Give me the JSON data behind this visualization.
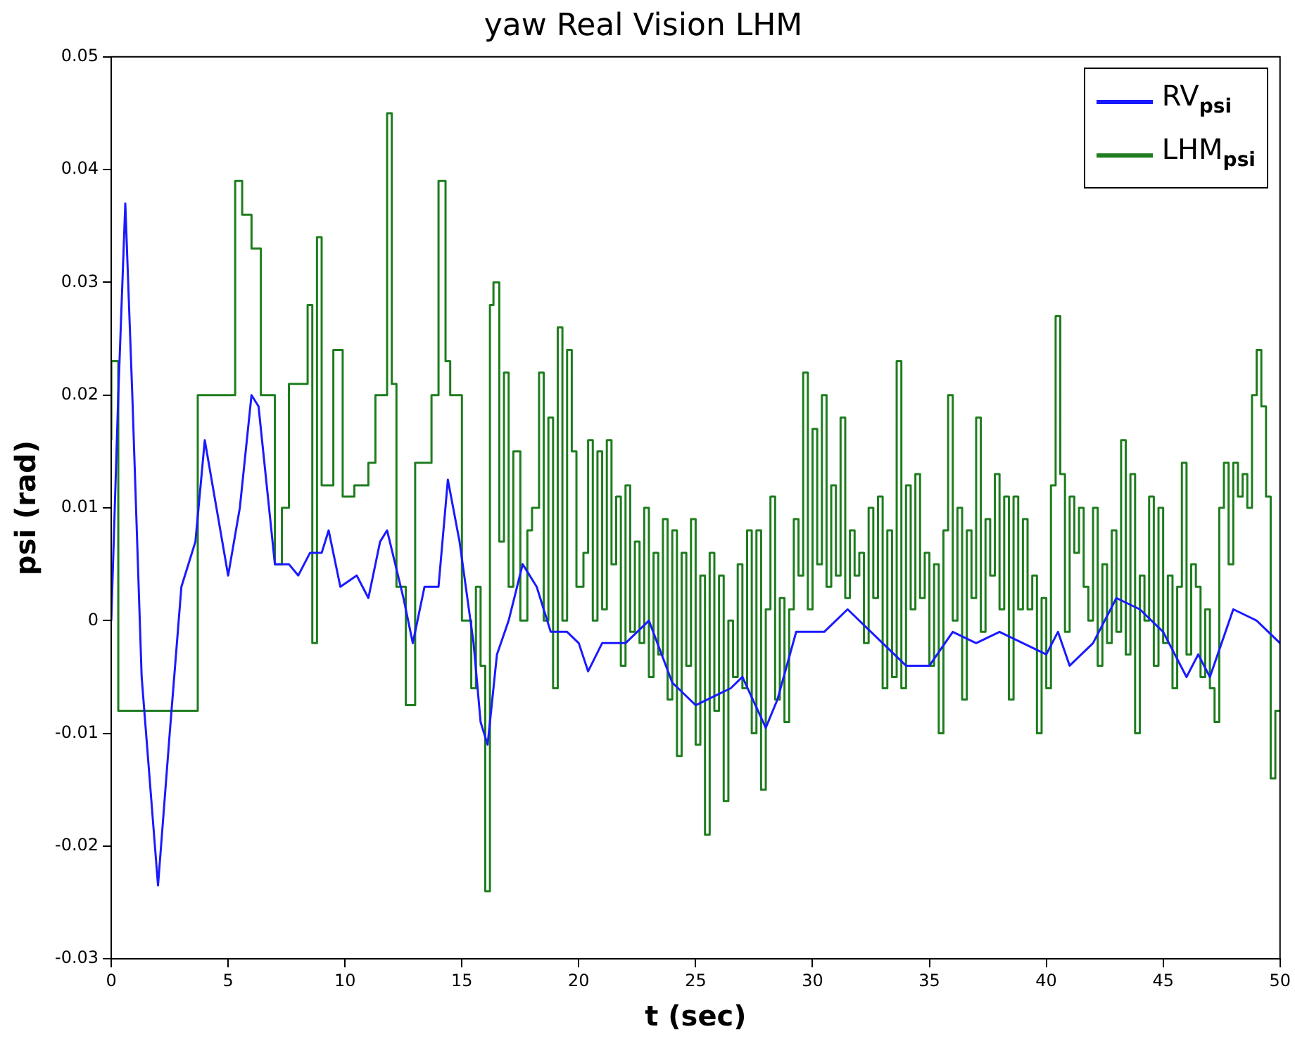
{
  "chart_data": {
    "type": "line",
    "title": "yaw Real Vision LHM",
    "xlabel": "t (sec)",
    "ylabel": "psi (rad)",
    "xlim": [
      0,
      50
    ],
    "xticks": [
      0,
      5,
      10,
      15,
      20,
      25,
      30,
      35,
      40,
      45,
      50
    ],
    "ylim": [
      -0.03,
      0.05
    ],
    "yticks": [
      -0.03,
      -0.02,
      -0.01,
      0,
      0.01,
      0.02,
      0.03,
      0.04,
      0.05
    ],
    "grid": false,
    "legend": "top right",
    "marker": "none",
    "line_style": "solid",
    "series": [
      {
        "name": "RV$_{psi}$",
        "color": "#1a1aff",
        "x": [
          0,
          0.3,
          0.6,
          0.9,
          1.3,
          2.0,
          2.5,
          3.0,
          3.6,
          4.0,
          4.5,
          5.0,
          5.5,
          6.0,
          6.3,
          7.0,
          7.6,
          8.0,
          8.5,
          9.0,
          9.3,
          9.8,
          10.5,
          11,
          11.5,
          11.8,
          12.5,
          12.9,
          13.4,
          14,
          14.4,
          14.9,
          15.5,
          15.8,
          16.1,
          16.5,
          17.0,
          17.6,
          18.2,
          18.8,
          19.5,
          20.0,
          20.4,
          21,
          22,
          23,
          24,
          25,
          26.5,
          27,
          28,
          28.5,
          29.3,
          30.5,
          31.5,
          32.5,
          34,
          35,
          36,
          37,
          38,
          39,
          40,
          40.5,
          41,
          42,
          43,
          44,
          45,
          46,
          46.5,
          47,
          48,
          49,
          50
        ],
        "values": [
          0,
          0.02,
          0.037,
          0.02,
          -0.005,
          -0.0235,
          -0.01,
          0.003,
          0.007,
          0.016,
          0.01,
          0.004,
          0.01,
          0.02,
          0.019,
          0.005,
          0.005,
          0.004,
          0.006,
          0.006,
          0.008,
          0.003,
          0.004,
          0.002,
          0.007,
          0.008,
          0.002,
          -0.002,
          0.003,
          0.003,
          0.0125,
          0.007,
          -0.002,
          -0.009,
          -0.011,
          -0.003,
          0,
          0.005,
          0.003,
          -0.001,
          -0.001,
          -0.002,
          -0.0045,
          -0.002,
          -0.002,
          0,
          -0.0055,
          -0.0075,
          -0.006,
          -0.005,
          -0.0095,
          -0.007,
          -0.001,
          -0.001,
          0.001,
          -0.001,
          -0.004,
          -0.004,
          -0.001,
          -0.002,
          -0.001,
          -0.002,
          -0.003,
          -0.001,
          -0.004,
          -0.002,
          0.002,
          0.001,
          -0.001,
          -0.005,
          -0.003,
          -0.005,
          0.001,
          0,
          -0.002
        ]
      },
      {
        "name": "LHM$_{psi}$",
        "color": "#1e7d1e",
        "type": "step",
        "x": [
          0,
          0.3,
          3.7,
          5.3,
          5.6,
          6.0,
          6.4,
          7.0,
          7.3,
          7.6,
          8.4,
          8.6,
          8.8,
          9.0,
          9.5,
          9.9,
          10.4,
          11.0,
          11.3,
          11.8,
          12.0,
          12.2,
          12.6,
          13.0,
          13.7,
          14.0,
          14.3,
          14.5,
          15.0,
          15.4,
          15.6,
          15.8,
          16.0,
          16.2,
          16.35,
          16.6,
          16.8,
          17.0,
          17.2,
          17.5,
          17.8,
          18.0,
          18.3,
          18.5,
          18.7,
          18.9,
          19.1,
          19.3,
          19.5,
          19.7,
          19.9,
          20.2,
          20.4,
          20.6,
          20.8,
          21.0,
          21.2,
          21.4,
          21.6,
          21.8,
          22.0,
          22.2,
          22.4,
          22.6,
          22.8,
          23.0,
          23.2,
          23.4,
          23.6,
          23.8,
          24.0,
          24.2,
          24.4,
          24.6,
          24.8,
          25.0,
          25.2,
          25.4,
          25.6,
          25.8,
          26.0,
          26.2,
          26.4,
          26.6,
          26.8,
          27.0,
          27.2,
          27.4,
          27.6,
          27.8,
          28.0,
          28.2,
          28.4,
          28.6,
          28.8,
          29.0,
          29.2,
          29.4,
          29.6,
          29.8,
          30.0,
          30.2,
          30.4,
          30.6,
          30.8,
          31.0,
          31.2,
          31.4,
          31.6,
          31.8,
          32.0,
          32.2,
          32.4,
          32.6,
          32.8,
          33.0,
          33.2,
          33.4,
          33.6,
          33.8,
          34.0,
          34.2,
          34.4,
          34.6,
          34.8,
          35.0,
          35.2,
          35.4,
          35.6,
          35.8,
          36.0,
          36.2,
          36.4,
          36.6,
          36.8,
          37.0,
          37.2,
          37.4,
          37.6,
          37.8,
          38.0,
          38.2,
          38.4,
          38.6,
          38.8,
          39.0,
          39.2,
          39.4,
          39.6,
          39.8,
          40.0,
          40.2,
          40.4,
          40.6,
          40.8,
          41.0,
          41.2,
          41.4,
          41.6,
          41.8,
          42.0,
          42.2,
          42.4,
          42.6,
          42.8,
          43.0,
          43.2,
          43.4,
          43.6,
          43.8,
          44.0,
          44.2,
          44.4,
          44.6,
          44.8,
          45.0,
          45.2,
          45.4,
          45.6,
          45.8,
          46.0,
          46.2,
          46.4,
          46.6,
          46.8,
          47.0,
          47.2,
          47.4,
          47.6,
          47.8,
          48.0,
          48.2,
          48.4,
          48.6,
          48.8,
          49.0,
          49.2,
          49.4,
          49.6,
          49.8,
          50
        ],
        "values": [
          0.016,
          0.023,
          -0.008,
          0.02,
          0.039,
          0.036,
          0.033,
          0.02,
          0.005,
          0.01,
          0.021,
          0.028,
          -0.002,
          0.034,
          0.012,
          0.024,
          0.011,
          0.012,
          0.014,
          0.02,
          0.045,
          0.021,
          0.003,
          -0.0075,
          0.014,
          0.02,
          0.039,
          0.023,
          0.02,
          0,
          -0.006,
          0.003,
          -0.004,
          -0.024,
          0.028,
          0.03,
          0.007,
          0.022,
          0.003,
          0.015,
          0,
          0.008,
          0.01,
          0.022,
          0,
          0.018,
          -0.006,
          0.026,
          0,
          0.024,
          0.015,
          0.003,
          0.006,
          0.016,
          0,
          0.015,
          0.001,
          0.016,
          0.005,
          0.011,
          -0.004,
          0.012,
          -0.001,
          0.007,
          -0.002,
          0.01,
          -0.005,
          0.006,
          -0.003,
          0.009,
          -0.007,
          0.008,
          -0.012,
          0.006,
          -0.004,
          0.009,
          -0.011,
          0.004,
          -0.019,
          0.006,
          -0.008,
          0.004,
          -0.016,
          0,
          -0.005,
          0.005,
          -0.006,
          0.008,
          -0.01,
          0.008,
          -0.015,
          0.001,
          0.011,
          -0.007,
          0.002,
          -0.009,
          0.001,
          0.009,
          0.004,
          0.022,
          0.001,
          0.017,
          0.005,
          0.02,
          0.003,
          0.012,
          0.004,
          0.018,
          0.002,
          0.008,
          0.004,
          0.006,
          -0.002,
          0.01,
          0.002,
          0.011,
          -0.006,
          0.008,
          -0.005,
          0.023,
          -0.006,
          0.012,
          0.001,
          0.013,
          0.002,
          0.006,
          -0.004,
          0.005,
          -0.01,
          0.008,
          0.02,
          0,
          0.01,
          -0.007,
          0.008,
          0.002,
          0.018,
          -0.001,
          0.009,
          0.004,
          0.013,
          0.001,
          0.011,
          -0.007,
          0.011,
          0.001,
          0.009,
          0.001,
          0.004,
          -0.01,
          0.002,
          -0.006,
          0.012,
          0.027,
          0.013,
          -0.001,
          0.011,
          0.006,
          0.01,
          0.003,
          0,
          0.01,
          -0.004,
          0.005,
          -0.002,
          0.008,
          -0.001,
          0.016,
          -0.003,
          0.013,
          -0.01,
          0.004,
          0,
          0.011,
          -0.004,
          0.01,
          -0.002,
          0.004,
          -0.006,
          0.003,
          0.014,
          -0.003,
          0.005,
          0.003,
          -0.005,
          0.001,
          -0.006,
          -0.009,
          0.01,
          0.014,
          0.005,
          0.014,
          0.011,
          0.013,
          0.01,
          0.02,
          0.024,
          0.019,
          0.011,
          -0.014,
          -0.008
        ]
      }
    ]
  }
}
